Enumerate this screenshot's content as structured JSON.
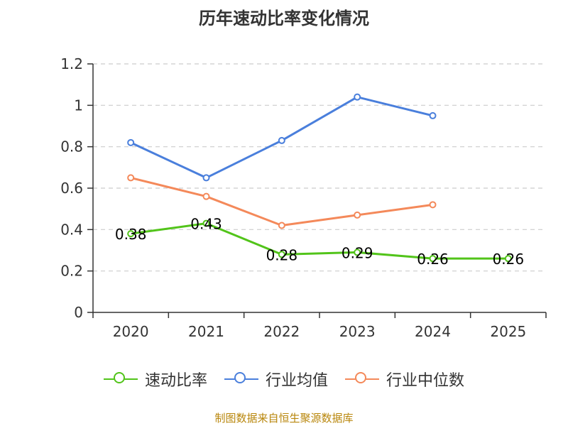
{
  "chart_data": {
    "type": "line",
    "title": "历年速动比率变化情况",
    "categories": [
      "2020",
      "2021",
      "2022",
      "2023",
      "2024",
      "2025"
    ],
    "yticks": [
      "0",
      "0.2",
      "0.4",
      "0.6",
      "0.8",
      "1",
      "1.2"
    ],
    "ylim": [
      0,
      1.2
    ],
    "series": [
      {
        "name": "速动比率",
        "color": "#52c41a",
        "values": [
          0.38,
          0.43,
          0.28,
          0.29,
          0.26,
          0.26
        ],
        "labels": [
          "0.38",
          "0.43",
          "0.28",
          "0.29",
          "0.26",
          "0.26"
        ]
      },
      {
        "name": "行业均值",
        "color": "#4a7fdc",
        "values": [
          0.82,
          0.65,
          0.83,
          1.04,
          0.95,
          null
        ]
      },
      {
        "name": "行业中位数",
        "color": "#f4895a",
        "values": [
          0.65,
          0.56,
          0.42,
          0.47,
          0.52,
          null
        ]
      }
    ],
    "grid": true,
    "legend_position": "bottom"
  },
  "source": "制图数据来自恒生聚源数据库"
}
